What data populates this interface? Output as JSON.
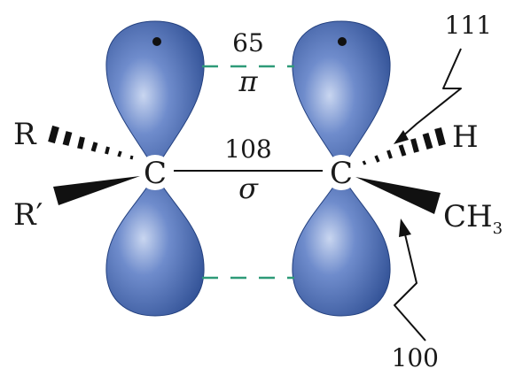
{
  "diagram": {
    "colors": {
      "lobe": "#3f63a8",
      "lobe_dark": "#23407f",
      "lobe_light": "#b9c9ea",
      "pi_bond": "#2e9a78",
      "sigma_bond": "#111111",
      "wedge": "#111111"
    },
    "pi_bond": {
      "value": "65",
      "symbol": "π"
    },
    "sigma_bond": {
      "value": "108",
      "symbol": "σ"
    },
    "left_carbon": {
      "symbol": "C",
      "hashed_substituent": "R",
      "wedged_substituent": "R′"
    },
    "right_carbon": {
      "symbol": "C",
      "hashed_substituent": "H",
      "wedged_substituent_main": "CH",
      "wedged_substituent_subscript": "3"
    },
    "rotation_arrows": {
      "upper_value": "111",
      "lower_value": "100"
    }
  }
}
